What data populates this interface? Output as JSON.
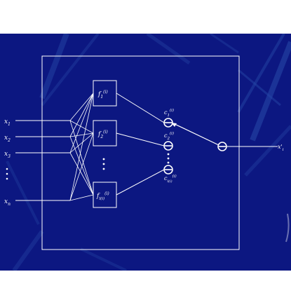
{
  "inputs": [
    {
      "main": "x",
      "sub": "1"
    },
    {
      "main": "x",
      "sub": "2"
    },
    {
      "main": "x",
      "sub": "3"
    },
    {
      "main": "x",
      "sub": "n"
    }
  ],
  "functions": [
    {
      "main": "f",
      "sub": "1",
      "sup": "(i)"
    },
    {
      "main": "f",
      "sub": "2",
      "sup": "(i)"
    },
    {
      "main": "f",
      "sub": "l(i)",
      "sup": "(i)"
    }
  ],
  "coefficients": [
    {
      "main": "c",
      "sub": "1",
      "sup": "(i)"
    },
    {
      "main": "c",
      "sub": "2",
      "sup": "(i)"
    },
    {
      "main": "c",
      "sub": "l(i)",
      "sup": "(i)"
    }
  ],
  "output": {
    "main": "x'",
    "sub": "i"
  },
  "colors": {
    "background": "#0c1781",
    "stroke": "#ffffff"
  }
}
